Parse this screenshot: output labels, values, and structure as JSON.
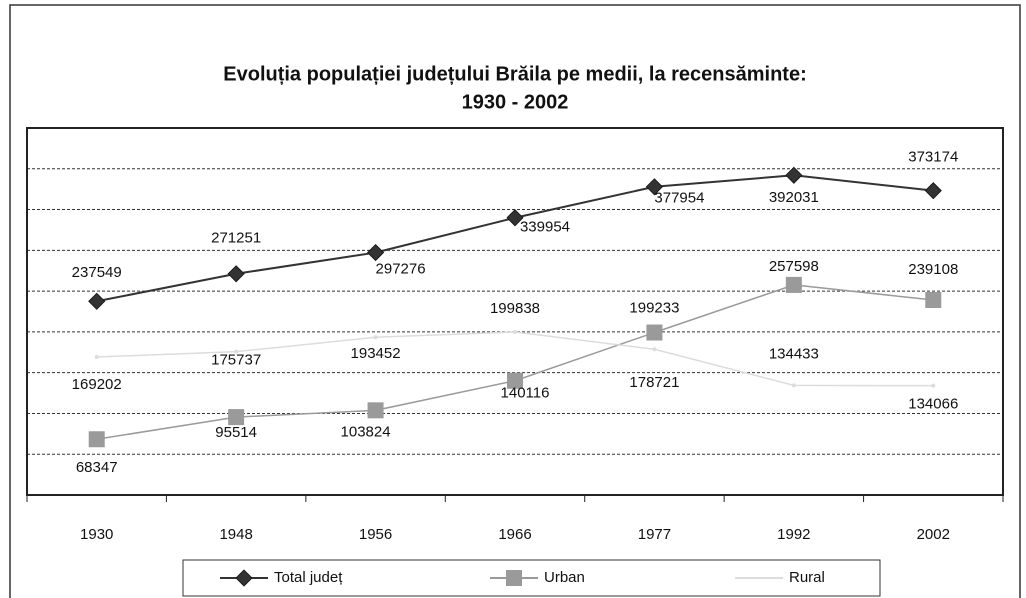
{
  "chart_data": {
    "type": "line",
    "title": [
      "Evoluția populației județului Brăila pe medii, la recensăminte:",
      "1930 - 2002"
    ],
    "categories": [
      "1930",
      "1948",
      "1956",
      "1966",
      "1977",
      "1992",
      "2002"
    ],
    "series": [
      {
        "name": "Total județ",
        "color": "#333333",
        "marker": "diamond",
        "values": [
          237549,
          271251,
          297276,
          339954,
          377954,
          392031,
          373174
        ]
      },
      {
        "name": "Urban",
        "color": "#9a9a9a",
        "marker": "square",
        "values": [
          68347,
          95514,
          103824,
          140116,
          199233,
          257598,
          239108
        ]
      },
      {
        "name": "Rural",
        "color": "#dcdcdc",
        "marker": "none",
        "values": [
          169202,
          175737,
          193452,
          199838,
          178721,
          134433,
          134066
        ]
      }
    ],
    "ylim": [
      0,
      450000
    ],
    "yticks": [
      0,
      50000,
      100000,
      150000,
      200000,
      250000,
      300000,
      350000,
      400000,
      450000
    ],
    "grid": true,
    "legend": "bottom"
  }
}
